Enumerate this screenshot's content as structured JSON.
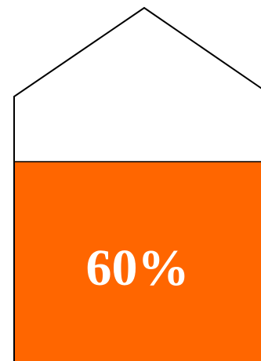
{
  "level_indicator": {
    "fill_percent": 60,
    "label": "60%",
    "fill_color": "#FF6600",
    "outline_color": "#000000",
    "background_color": "#FFFFFF"
  }
}
